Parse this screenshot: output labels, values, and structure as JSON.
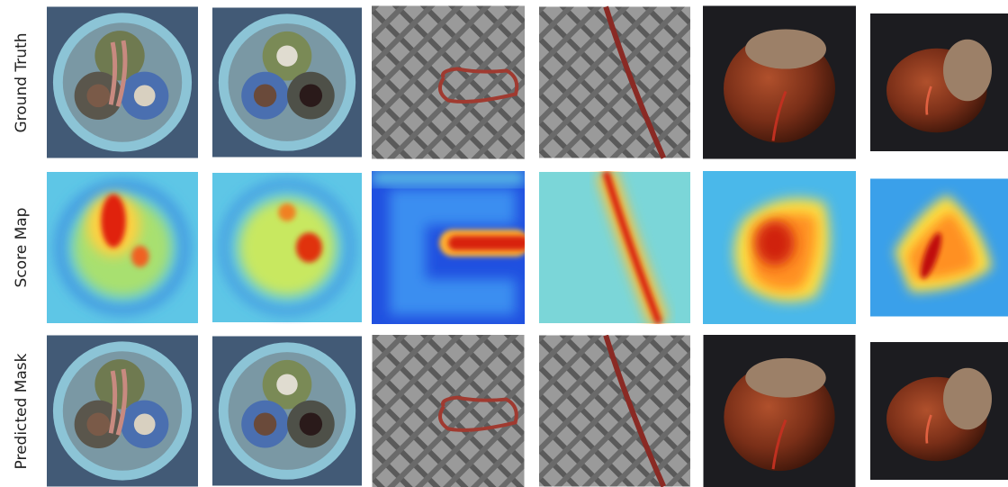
{
  "row_labels": [
    "Ground Truth",
    "Score Map",
    "Predicted Mask"
  ]
}
